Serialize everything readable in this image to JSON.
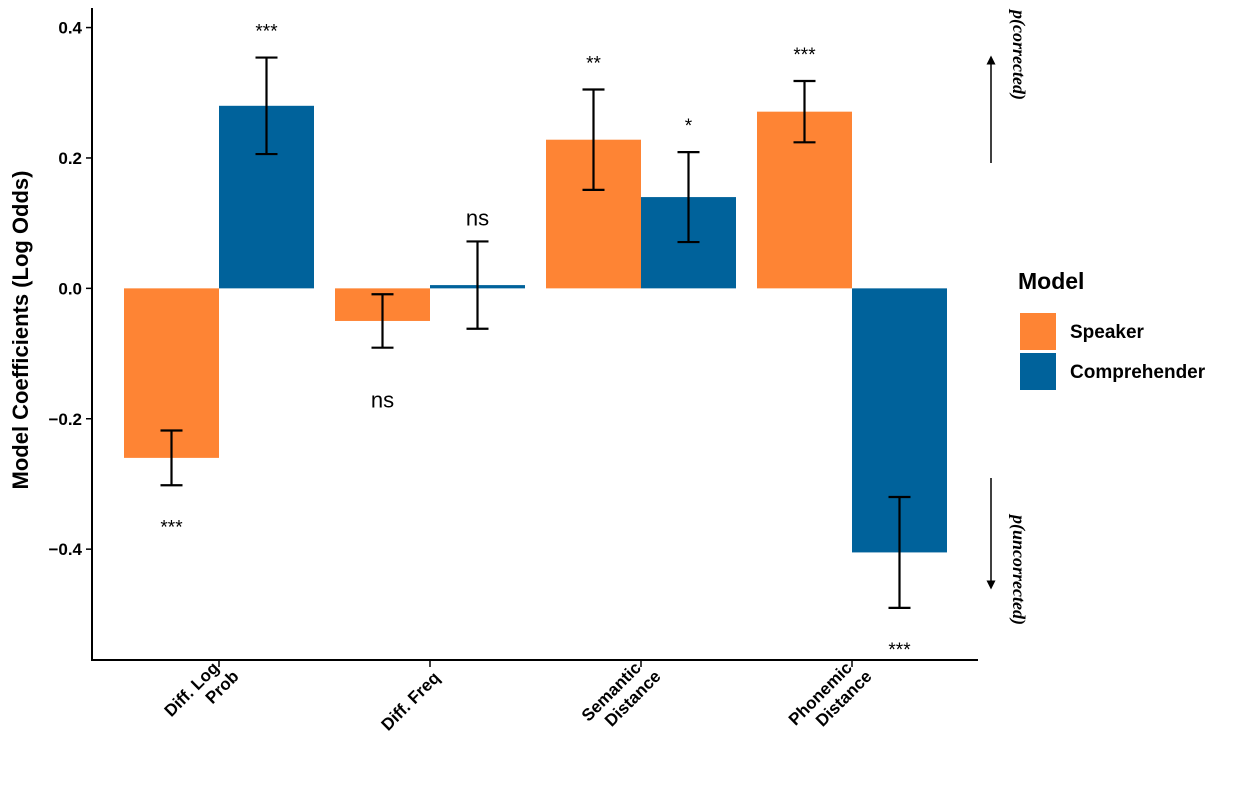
{
  "chart_data": {
    "type": "bar",
    "y_label": "Model Coefficients (Log Odds)",
    "categories": [
      [
        "Diff. Log",
        "Prob"
      ],
      [
        "Diff. Freq"
      ],
      [
        "Semantic",
        "Distance"
      ],
      [
        "Phonemic",
        "Distance"
      ]
    ],
    "series": [
      {
        "name": "Speaker",
        "color": "#fe8434",
        "values": [
          -0.26,
          -0.05,
          0.228,
          0.271
        ],
        "errors": [
          0.042,
          0.041,
          0.077,
          0.047
        ],
        "significance": [
          "***",
          "ns",
          "**",
          "***"
        ]
      },
      {
        "name": "Comprehender",
        "color": "#00629b",
        "values": [
          0.28,
          0.005,
          0.14,
          -0.405
        ],
        "errors": [
          0.074,
          0.067,
          0.069,
          0.085
        ],
        "significance": [
          "***",
          "ns",
          "*",
          "***"
        ]
      }
    ],
    "legend_title": "Model",
    "legend_position": "right",
    "ylim": [
      -0.57,
      0.43
    ],
    "yticks": [
      0.4,
      0.2,
      {
        "value": 0,
        "label": "0.0"
      },
      {
        "value": -0.2,
        "label": "−0.2"
      },
      {
        "value": -0.4,
        "label": "−0.4"
      }
    ],
    "annotations": [
      "p(corrected)",
      "p(uncorrected)"
    ]
  }
}
